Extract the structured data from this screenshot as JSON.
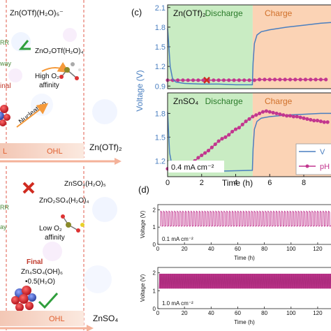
{
  "left_panel": {
    "top": {
      "formula_1": "Zn(OTf)(H₂O)₅⁻",
      "formula_2": "ZnO₂OTf(H₂O)₄",
      "affinity": [
        "High O₂",
        "affinity"
      ],
      "nucleation": "Nucleation",
      "rrr_fragment": [
        "RR",
        "way"
      ],
      "final_fragment": "inal",
      "layer_l": "L",
      "layer_ohl": "OHL",
      "electrolyte": "Zn(OTf)₂"
    },
    "bottom": {
      "formula_1": "ZnSO₄(H₂O)₅",
      "formula_2": "ZnO₂SO₄(H₂O)₄",
      "affinity": [
        "Low O₂",
        "affinity"
      ],
      "final": "Final",
      "product": [
        "Zn₄SO₄(OH)₆",
        "•0.5(H₂O)"
      ],
      "rrr_fragment": [
        "RR",
        "ay"
      ],
      "layer_ohl": "OHL",
      "electrolyte": "ZnSO₄"
    }
  },
  "chart_data": [
    {
      "type": "line",
      "panel_label": "(c)",
      "xlabel": "Time (h)",
      "ylabel": "Voltage (V)",
      "xlim": [
        0,
        9.6
      ],
      "x_ticks": [
        0,
        2,
        4,
        6,
        8
      ],
      "x_tick_labels": [
        "0",
        "2",
        "4",
        "6",
        "8"
      ],
      "regions": [
        {
          "label": "Discharge",
          "x": [
            0,
            5
          ],
          "color": "#c9ecc3"
        },
        {
          "label": "Charge",
          "x": [
            5,
            9.6
          ],
          "color": "#fbd3b5"
        }
      ],
      "colors": {
        "voltage": "#4a7fc0",
        "ph": "#c2368f"
      },
      "legend": {
        "position": "bottom-right",
        "entries": [
          "V",
          "pH"
        ]
      },
      "subplots": [
        {
          "title": "Zn(OTf)₂",
          "ylim": [
            0.86,
            2.14
          ],
          "y_ticks": [
            0.9,
            1.2,
            1.5,
            1.8,
            2.1
          ],
          "y_tick_labels": [
            "0.9",
            "1.2",
            "1.5",
            "1.8",
            "2.1"
          ],
          "voltage": {
            "x": [
              0,
              0.05,
              0.15,
              0.3,
              0.5,
              1,
              2,
              3,
              4,
              4.98,
              5.02,
              5.1,
              5.25,
              5.5,
              6,
              7,
              8,
              9,
              9.6
            ],
            "y": [
              1.78,
              1.6,
              1.2,
              1.0,
              0.96,
              0.94,
              0.93,
              0.93,
              0.92,
              0.92,
              1.25,
              1.55,
              1.68,
              1.73,
              1.76,
              1.8,
              1.83,
              1.86,
              1.87
            ]
          },
          "ph": {
            "x": [
              0,
              0.3,
              0.6,
              0.9,
              1.2,
              1.5,
              1.8,
              2.1,
              2.4,
              2.7,
              3.0,
              3.3,
              3.6,
              3.9,
              4.2,
              4.5,
              4.8,
              5.1,
              5.4,
              5.7,
              6.0,
              6.3,
              6.6,
              6.9,
              7.2,
              7.5,
              7.8,
              8.1,
              8.4,
              8.7,
              9.0,
              9.3
            ],
            "y": [
              0.99,
              0.99,
              0.99,
              0.99,
              0.99,
              0.99,
              0.99,
              0.99,
              0.99,
              0.99,
              0.99,
              0.99,
              0.99,
              0.99,
              0.99,
              0.99,
              0.99,
              0.99,
              1.0,
              1.0,
              1.0,
              1.0,
              1.0,
              1.0,
              1.0,
              1.0,
              1.0,
              1.0,
              1.0,
              1.0,
              1.0,
              1.0
            ]
          },
          "marker_x": {
            "x": 2.3,
            "y": 0.99
          }
        },
        {
          "title": "ZnSO₄",
          "annotation": "0.4 mA cm⁻²",
          "ylim": [
            1.0,
            2.06
          ],
          "y_ticks": [
            1.2,
            1.5,
            1.8
          ],
          "y_tick_labels": [
            "1.2",
            "1.5",
            "1.8"
          ],
          "voltage": {
            "x": [
              0,
              0.05,
              0.12,
              0.25,
              0.45,
              0.8,
              1.5,
              3,
              4.98,
              5.02,
              5.1,
              5.25,
              5.5,
              6,
              7,
              8,
              9,
              9.6
            ],
            "y": [
              1.82,
              1.6,
              1.3,
              1.15,
              1.09,
              1.08,
              1.07,
              1.07,
              1.08,
              1.35,
              1.6,
              1.7,
              1.74,
              1.76,
              1.78,
              1.79,
              1.8,
              1.8
            ]
          },
          "ph": {
            "x": [
              0,
              0.2,
              0.4,
              0.6,
              0.8,
              1.0,
              1.2,
              1.4,
              1.6,
              1.8,
              2.0,
              2.2,
              2.4,
              2.6,
              2.8,
              3.0,
              3.2,
              3.4,
              3.6,
              3.8,
              4.0,
              4.2,
              4.4,
              4.6,
              4.8,
              5.0,
              5.2,
              5.4,
              5.6,
              5.8,
              6.0,
              6.2,
              6.4,
              6.6,
              6.8,
              7.0,
              7.2,
              7.4,
              7.6,
              7.8,
              8.0,
              8.2,
              8.4,
              8.6,
              8.8,
              9.0,
              9.2,
              9.4
            ],
            "y": [
              1.1,
              1.1,
              1.1,
              1.1,
              1.11,
              1.12,
              1.14,
              1.16,
              1.2,
              1.24,
              1.27,
              1.3,
              1.33,
              1.37,
              1.41,
              1.45,
              1.48,
              1.5,
              1.53,
              1.57,
              1.6,
              1.62,
              1.66,
              1.7,
              1.73,
              1.76,
              1.78,
              1.8,
              1.82,
              1.83,
              1.82,
              1.81,
              1.8,
              1.79,
              1.78,
              1.77,
              1.77,
              1.76,
              1.76,
              1.75,
              1.74,
              1.73,
              1.72,
              1.71,
              1.71,
              1.7,
              1.69,
              1.69
            ]
          }
        }
      ]
    },
    {
      "type": "line",
      "panel_label": "(d)",
      "xlabel": "Time (h)",
      "ylabel": "Voltage (V)",
      "color": "#c2368f",
      "subplots": [
        {
          "annotation": "0.1 mA cm⁻²",
          "ylim": [
            0,
            2.3
          ],
          "y_ticks": [
            0,
            1,
            2
          ],
          "y_tick_labels": [
            "0",
            "1",
            "2"
          ],
          "xlim": [
            0,
            130
          ],
          "x_ticks": [
            0,
            20,
            40,
            60,
            80,
            100,
            120
          ],
          "x_tick_labels": [
            "0",
            "20",
            "40",
            "60",
            "80",
            "100",
            "120"
          ],
          "oscillation": {
            "cycles": 62,
            "low": 1.05,
            "high": 1.92
          }
        },
        {
          "annotation": "1.0 mA cm⁻²",
          "ylim": [
            0,
            2.3
          ],
          "y_ticks": [
            0,
            1,
            2
          ],
          "y_tick_labels": [
            "0",
            "1",
            "2"
          ],
          "xlim": [
            0,
            130
          ],
          "x_ticks": [
            0,
            20,
            40,
            60,
            80,
            100,
            120
          ],
          "x_tick_labels": [
            "0",
            "20",
            "40",
            "60",
            "80",
            "100",
            "120"
          ],
          "oscillation": {
            "low": 1.12,
            "high": 1.95
          }
        }
      ]
    }
  ]
}
